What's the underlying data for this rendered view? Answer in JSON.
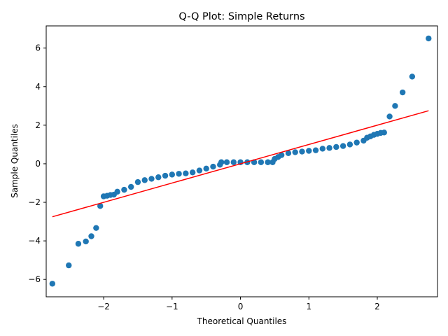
{
  "chart_data": {
    "type": "scatter",
    "title": "Q-Q Plot: Simple Returns",
    "xlabel": "Theoretical Quantiles",
    "ylabel": "Sample Quantiles",
    "xlim": [
      -2.84,
      2.88
    ],
    "ylim": [
      -6.9,
      7.15
    ],
    "xticks": [
      -2,
      -1,
      0,
      1,
      2
    ],
    "yticks": [
      -6,
      -4,
      -2,
      0,
      2,
      4,
      6
    ],
    "grid": false,
    "colors": {
      "points": "#1f77b4",
      "line": "#ff0000"
    },
    "reference_line": {
      "x": [
        -2.75,
        2.75
      ],
      "y": [
        -2.75,
        2.75
      ]
    },
    "series": [
      {
        "values": [
          {
            "x": -2.75,
            "y": -6.22
          },
          {
            "x": -2.51,
            "y": -5.27
          },
          {
            "x": -2.37,
            "y": -4.15
          },
          {
            "x": -2.26,
            "y": -4.03
          },
          {
            "x": -2.18,
            "y": -3.76
          },
          {
            "x": -2.11,
            "y": -3.33
          },
          {
            "x": -2.05,
            "y": -2.19
          },
          {
            "x": -2.0,
            "y": -1.69
          },
          {
            "x": -1.95,
            "y": -1.66
          },
          {
            "x": -1.9,
            "y": -1.62
          },
          {
            "x": -1.85,
            "y": -1.6
          },
          {
            "x": -1.8,
            "y": -1.45
          },
          {
            "x": -1.7,
            "y": -1.35
          },
          {
            "x": -1.6,
            "y": -1.2
          },
          {
            "x": -1.5,
            "y": -0.95
          },
          {
            "x": -1.4,
            "y": -0.85
          },
          {
            "x": -1.3,
            "y": -0.78
          },
          {
            "x": -1.2,
            "y": -0.7
          },
          {
            "x": -1.1,
            "y": -0.62
          },
          {
            "x": -1.0,
            "y": -0.56
          },
          {
            "x": -0.9,
            "y": -0.52
          },
          {
            "x": -0.8,
            "y": -0.5
          },
          {
            "x": -0.7,
            "y": -0.45
          },
          {
            "x": -0.6,
            "y": -0.35
          },
          {
            "x": -0.5,
            "y": -0.25
          },
          {
            "x": -0.4,
            "y": -0.15
          },
          {
            "x": -0.3,
            "y": -0.05
          },
          {
            "x": -0.28,
            "y": 0.08
          },
          {
            "x": -0.2,
            "y": 0.08
          },
          {
            "x": -0.1,
            "y": 0.08
          },
          {
            "x": 0.0,
            "y": 0.08
          },
          {
            "x": 0.1,
            "y": 0.08
          },
          {
            "x": 0.2,
            "y": 0.08
          },
          {
            "x": 0.3,
            "y": 0.08
          },
          {
            "x": 0.4,
            "y": 0.08
          },
          {
            "x": 0.47,
            "y": 0.08
          },
          {
            "x": 0.5,
            "y": 0.25
          },
          {
            "x": 0.55,
            "y": 0.35
          },
          {
            "x": 0.6,
            "y": 0.45
          },
          {
            "x": 0.7,
            "y": 0.55
          },
          {
            "x": 0.8,
            "y": 0.6
          },
          {
            "x": 0.9,
            "y": 0.63
          },
          {
            "x": 1.0,
            "y": 0.67
          },
          {
            "x": 1.1,
            "y": 0.7
          },
          {
            "x": 1.2,
            "y": 0.78
          },
          {
            "x": 1.3,
            "y": 0.82
          },
          {
            "x": 1.4,
            "y": 0.87
          },
          {
            "x": 1.5,
            "y": 0.92
          },
          {
            "x": 1.6,
            "y": 1.0
          },
          {
            "x": 1.7,
            "y": 1.1
          },
          {
            "x": 1.8,
            "y": 1.2
          },
          {
            "x": 1.85,
            "y": 1.35
          },
          {
            "x": 1.9,
            "y": 1.42
          },
          {
            "x": 1.95,
            "y": 1.5
          },
          {
            "x": 2.0,
            "y": 1.55
          },
          {
            "x": 2.05,
            "y": 1.6
          },
          {
            "x": 2.1,
            "y": 1.62
          },
          {
            "x": 2.18,
            "y": 2.45
          },
          {
            "x": 2.26,
            "y": 3.0
          },
          {
            "x": 2.37,
            "y": 3.7
          },
          {
            "x": 2.51,
            "y": 4.52
          },
          {
            "x": 2.75,
            "y": 6.5
          }
        ]
      }
    ]
  }
}
